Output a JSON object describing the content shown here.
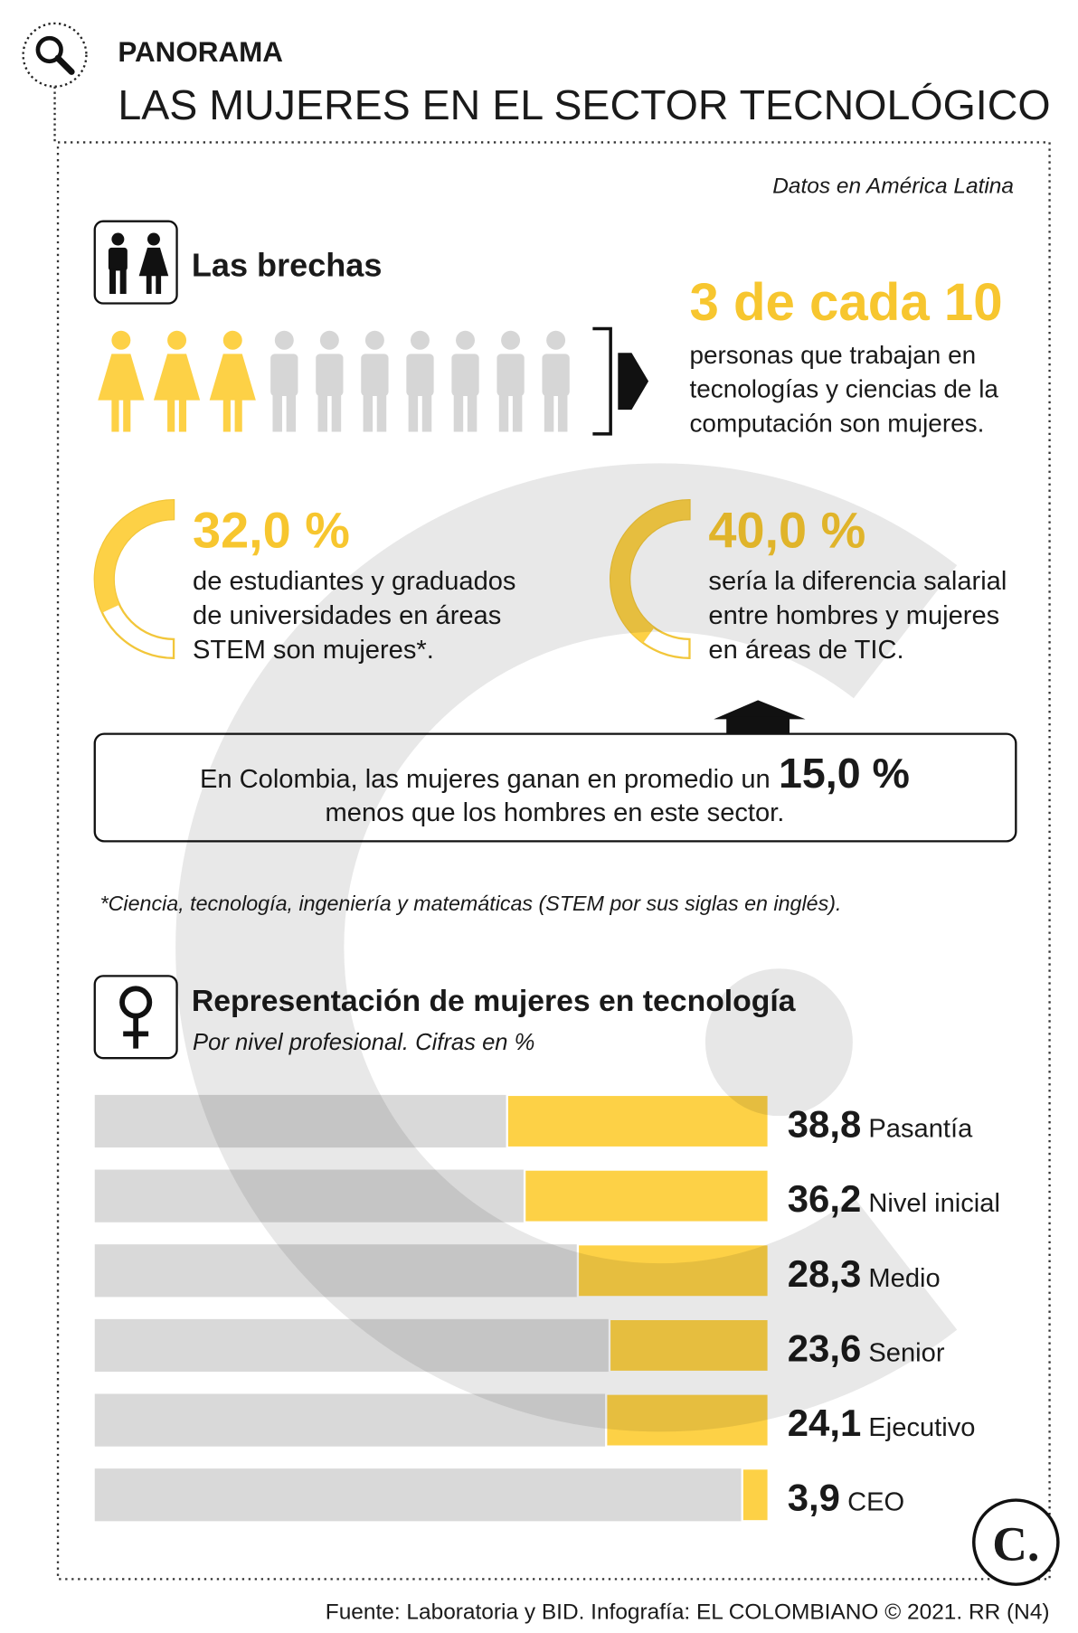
{
  "header": {
    "kicker": "PANORAMA",
    "title": "LAS MUJERES EN EL SECTOR TECNOLÓGICO"
  },
  "note": "Datos en América Latina",
  "gaps": {
    "title": "Las brechas",
    "headline": "3 de cada 10",
    "headline_text": [
      "personas que trabajan en",
      "tecnologías y ciencias de la",
      "computación son mujeres."
    ],
    "pictogram": {
      "highlighted": 3,
      "total": 10,
      "color": "#fdd146",
      "rest_color": "#d6d6d6"
    }
  },
  "stats": [
    {
      "value": 32.0,
      "value_label": "32,0 %",
      "text": [
        "de estudiantes y graduados",
        "de universidades en áreas",
        "STEM son mujeres*."
      ]
    },
    {
      "value": 40.0,
      "value_label": "40,0 %",
      "text": [
        "sería la diferencia salarial",
        "entre hombres y mujeres",
        "en áreas de TIC."
      ]
    }
  ],
  "callout": {
    "before": "En Colombia, las mujeres ganan en promedio un",
    "value_label": "15,0 %",
    "after": "menos que los hombres en este sector."
  },
  "footnote": "*Ciencia, tecnología, ingeniería y matemáticas (STEM por sus siglas en inglés).",
  "chart_data": {
    "type": "bar",
    "orientation": "horizontal",
    "title": "Representación de mujeres en tecnología",
    "subtitle": "Por nivel profesional. Cifras en %",
    "categories": [
      "Pasantía",
      "Nivel inicial",
      "Medio",
      "Senior",
      "Ejecutivo",
      "CEO"
    ],
    "values": [
      38.8,
      36.2,
      28.3,
      23.6,
      24.1,
      3.9
    ],
    "value_labels": [
      "38,8",
      "36,2",
      "28,3",
      "23,6",
      "24,1",
      "3,9"
    ],
    "xlim": [
      0,
      100
    ],
    "color": "#fdd146",
    "rest_color": "#d9d9d9"
  },
  "source": "Fuente: Laboratoria y BID. Infografía: EL COLOMBIANO © 2021. RR (N4)",
  "logo": "C."
}
